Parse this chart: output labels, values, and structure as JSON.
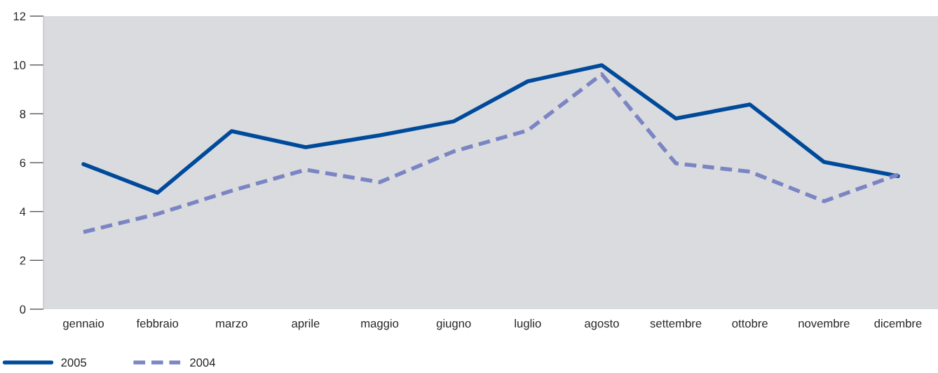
{
  "chart_data": {
    "type": "line",
    "categories": [
      "gennaio",
      "febbraio",
      "marzo",
      "aprile",
      "maggio",
      "giugno",
      "luglio",
      "agosto",
      "settembre",
      "ottobre",
      "novembre",
      "dicembre"
    ],
    "series": [
      {
        "name": "2005",
        "color": "#004a9b",
        "line_style": "solid",
        "values": [
          5.94,
          4.77,
          7.29,
          6.63,
          7.12,
          7.69,
          9.33,
          9.99,
          7.81,
          8.38,
          6.03,
          5.45
        ]
      },
      {
        "name": "2004",
        "color": "#7b85c4",
        "line_style": "dashed",
        "values": [
          3.16,
          3.9,
          4.85,
          5.71,
          5.2,
          6.46,
          7.32,
          9.62,
          5.97,
          5.63,
          4.42,
          5.51
        ]
      }
    ],
    "ylim": [
      0,
      12
    ],
    "yticks": [
      0,
      2,
      4,
      6,
      8,
      10,
      12
    ],
    "grid": false,
    "legend": "bottom left",
    "marker": "none"
  }
}
